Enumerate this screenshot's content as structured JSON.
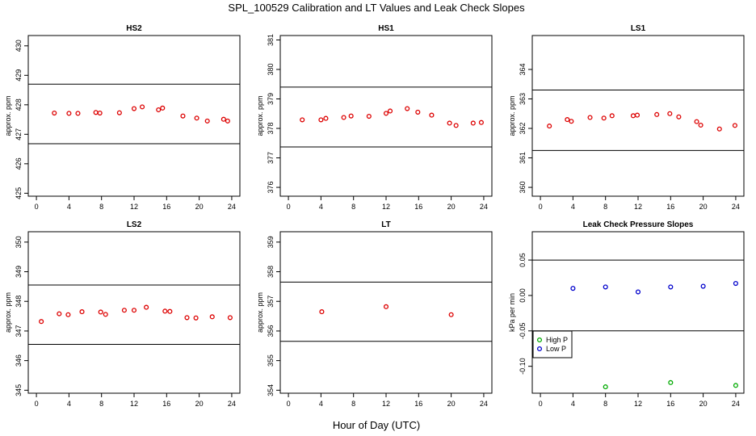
{
  "figure": {
    "title": "SPL_100529  Calibration and LT Values and Leak Check Slopes",
    "xlabel": "Hour of Day (UTC)"
  },
  "chart_data": [
    {
      "type": "scatter",
      "title": "HS2",
      "ylabel": "approx. ppm",
      "xlim": [
        -1,
        25
      ],
      "xticks": [
        0,
        4,
        8,
        12,
        16,
        20,
        24
      ],
      "ylim": [
        424.9,
        430.35
      ],
      "yticks": [
        425,
        426,
        427,
        428,
        429,
        430
      ],
      "hlines": [
        428.7,
        426.68
      ],
      "series": [
        {
          "name": "values",
          "color": "#dd0000",
          "marker": "circle",
          "x": [
            2.2,
            4.0,
            5.1,
            7.3,
            7.8,
            10.2,
            12.0,
            13.0,
            15.0,
            15.5,
            18.0,
            19.7,
            21.0,
            23.0,
            23.5
          ],
          "y": [
            427.72,
            427.71,
            427.71,
            427.74,
            427.72,
            427.73,
            427.87,
            427.93,
            427.83,
            427.89,
            427.62,
            427.55,
            427.45,
            427.51,
            427.45
          ]
        }
      ]
    },
    {
      "type": "scatter",
      "title": "HS1",
      "ylabel": "approx. ppm",
      "xlim": [
        -1,
        25
      ],
      "xticks": [
        0,
        4,
        8,
        12,
        16,
        20,
        24
      ],
      "ylim": [
        375.7,
        381.15
      ],
      "yticks": [
        376,
        377,
        378,
        379,
        380,
        381
      ],
      "hlines": [
        379.4,
        377.37
      ],
      "series": [
        {
          "name": "values",
          "color": "#dd0000",
          "marker": "circle",
          "x": [
            1.7,
            4.0,
            4.6,
            6.8,
            7.7,
            9.9,
            12.0,
            12.5,
            14.6,
            15.9,
            17.6,
            19.8,
            20.6,
            22.7,
            23.7
          ],
          "y": [
            378.29,
            378.29,
            378.34,
            378.37,
            378.42,
            378.41,
            378.51,
            378.59,
            378.67,
            378.55,
            378.45,
            378.18,
            378.1,
            378.18,
            378.2
          ]
        }
      ]
    },
    {
      "type": "scatter",
      "title": "LS1",
      "ylabel": "approx. ppm",
      "xlim": [
        -1,
        25
      ],
      "xticks": [
        0,
        4,
        8,
        12,
        16,
        20,
        24
      ],
      "ylim": [
        359.7,
        365.15
      ],
      "yticks": [
        360,
        361,
        362,
        363,
        364
      ],
      "hlines": [
        363.3,
        361.25
      ],
      "series": [
        {
          "name": "values",
          "color": "#dd0000",
          "marker": "circle",
          "x": [
            1.1,
            3.3,
            3.8,
            6.1,
            7.8,
            8.8,
            11.4,
            11.9,
            14.3,
            15.9,
            17.0,
            19.2,
            19.7,
            22.0,
            23.9
          ],
          "y": [
            362.08,
            362.3,
            362.24,
            362.37,
            362.35,
            362.43,
            362.43,
            362.45,
            362.47,
            362.5,
            362.39,
            362.23,
            362.11,
            361.98,
            362.1
          ]
        }
      ]
    },
    {
      "type": "scatter",
      "title": "LS2",
      "ylabel": "approx. ppm",
      "xlim": [
        -1,
        25
      ],
      "xticks": [
        0,
        4,
        8,
        12,
        16,
        20,
        24
      ],
      "ylim": [
        344.9,
        350.35
      ],
      "yticks": [
        345,
        346,
        347,
        348,
        349,
        350
      ],
      "hlines": [
        348.55,
        346.55
      ],
      "series": [
        {
          "name": "values",
          "color": "#dd0000",
          "marker": "circle",
          "x": [
            0.6,
            2.8,
            3.9,
            5.6,
            7.9,
            8.5,
            10.8,
            12.0,
            13.5,
            15.8,
            16.4,
            18.5,
            19.6,
            21.6,
            23.8
          ],
          "y": [
            347.32,
            347.58,
            347.55,
            347.65,
            347.64,
            347.56,
            347.7,
            347.7,
            347.8,
            347.67,
            347.66,
            347.45,
            347.44,
            347.48,
            347.45
          ]
        }
      ]
    },
    {
      "type": "scatter",
      "title": "LT",
      "ylabel": "approx. ppm",
      "xlim": [
        -1,
        25
      ],
      "xticks": [
        0,
        4,
        8,
        12,
        16,
        20,
        24
      ],
      "ylim": [
        353.9,
        359.35
      ],
      "yticks": [
        354,
        355,
        356,
        357,
        358,
        359
      ],
      "hlines": [
        357.65,
        355.65
      ],
      "series": [
        {
          "name": "values",
          "color": "#dd0000",
          "marker": "circle",
          "x": [
            4.1,
            12.0,
            20.0
          ],
          "y": [
            356.65,
            356.82,
            356.55
          ]
        }
      ]
    },
    {
      "type": "scatter",
      "title": "Leak Check Pressure Slopes",
      "ylabel": "kPa per min",
      "xlim": [
        -1,
        25
      ],
      "xticks": [
        0,
        4,
        8,
        12,
        16,
        20,
        24
      ],
      "ylim": [
        -0.138,
        0.09
      ],
      "yticks": [
        -0.1,
        -0.05,
        0.0,
        0.05
      ],
      "ytick_labels": [
        "-0.10",
        "-0.05",
        "0.00",
        "0.05"
      ],
      "hlines": [
        0.05,
        -0.05
      ],
      "legend_position": "bottom-left",
      "series": [
        {
          "name": "High P",
          "color": "#00aa00",
          "marker": "circle",
          "x": [
            8,
            16,
            24
          ],
          "y": [
            -0.129,
            -0.123,
            -0.127
          ]
        },
        {
          "name": "Low P",
          "color": "#0000cc",
          "marker": "circle",
          "x": [
            4,
            8,
            12,
            16,
            20,
            24
          ],
          "y": [
            0.01,
            0.012,
            0.005,
            0.012,
            0.013,
            0.017
          ]
        }
      ]
    }
  ]
}
